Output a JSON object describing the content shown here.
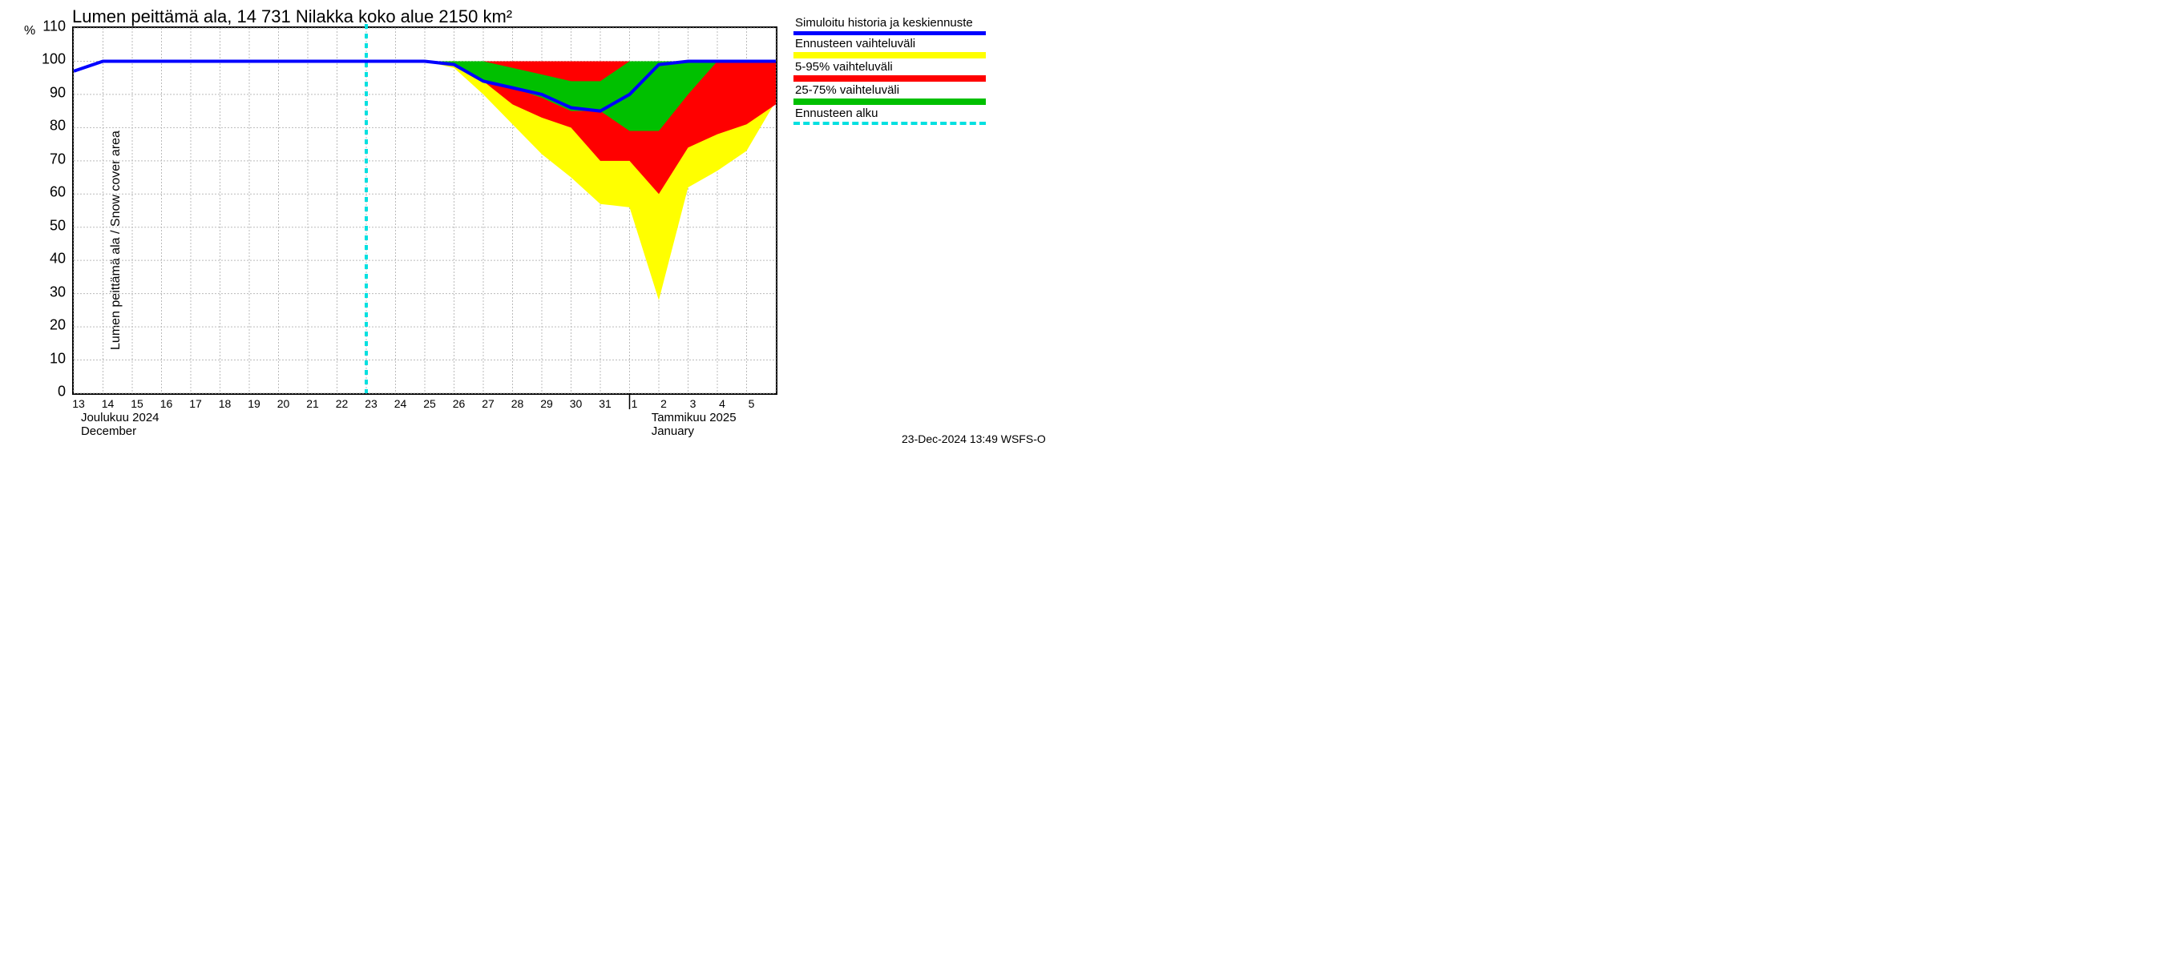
{
  "title": "Lumen peittämä ala, 14 731 Nilakka koko alue 2150 km²",
  "ylabel": "Lumen peittämä ala / Snow cover area",
  "yunit": "%",
  "footer": "23-Dec-2024 13:49 WSFS-O",
  "chart": {
    "type": "area+line",
    "background_color": "#ffffff",
    "grid_color": "#bbbbbb",
    "ylim": [
      0,
      110
    ],
    "yticks": [
      0,
      10,
      20,
      30,
      40,
      50,
      60,
      70,
      80,
      90,
      100,
      110
    ],
    "x_days": [
      "13",
      "14",
      "15",
      "16",
      "17",
      "18",
      "19",
      "20",
      "21",
      "22",
      "23",
      "24",
      "25",
      "26",
      "27",
      "28",
      "29",
      "30",
      "31",
      "1",
      "2",
      "3",
      "4",
      "5"
    ],
    "forecast_start_index": 10,
    "month_sep_index": 19,
    "month_labels": [
      {
        "at_index": 0.3,
        "line1": "Joulukuu  2024",
        "line2": "December"
      },
      {
        "at_index": 19.8,
        "line1": "Tammikuu  2025",
        "line2": "January"
      }
    ],
    "colors": {
      "sim_line": "#0000ff",
      "full_band": "#ffff00",
      "p5_95_band": "#ff0000",
      "p25_75_band": "#00c000",
      "forecast_start": "#00e0e0"
    },
    "line_widths": {
      "sim_line": 4,
      "forecast_start": 4
    },
    "sim_line": [
      97,
      100,
      100,
      100,
      100,
      100,
      100,
      100,
      100,
      100,
      100,
      100,
      100,
      99,
      94,
      92,
      90,
      86,
      85,
      90,
      99,
      100,
      100,
      100,
      100
    ],
    "full_lo": [
      97,
      100,
      100,
      100,
      100,
      100,
      100,
      100,
      100,
      100,
      100,
      100,
      100,
      98,
      90,
      81,
      72,
      65,
      57,
      56,
      28,
      62,
      67,
      73,
      88
    ],
    "full_hi": [
      97,
      100,
      100,
      100,
      100,
      100,
      100,
      100,
      100,
      100,
      100,
      100,
      100,
      100,
      100,
      100,
      100,
      100,
      100,
      100,
      100,
      100,
      100,
      100,
      100
    ],
    "p5_lo": [
      97,
      100,
      100,
      100,
      100,
      100,
      100,
      100,
      100,
      100,
      100,
      100,
      100,
      99,
      94,
      87,
      83,
      80,
      70,
      70,
      60,
      74,
      78,
      81,
      87
    ],
    "p5_hi": [
      97,
      100,
      100,
      100,
      100,
      100,
      100,
      100,
      100,
      100,
      100,
      100,
      100,
      100,
      100,
      100,
      100,
      100,
      100,
      100,
      100,
      100,
      100,
      100,
      100
    ],
    "p25_lo": [
      97,
      100,
      100,
      100,
      100,
      100,
      100,
      100,
      100,
      100,
      100,
      100,
      100,
      99,
      94,
      92,
      89,
      85,
      85,
      79,
      79,
      90,
      100,
      100,
      100
    ],
    "p25_hi": [
      97,
      100,
      100,
      100,
      100,
      100,
      100,
      100,
      100,
      100,
      100,
      100,
      100,
      100,
      100,
      98,
      96,
      94,
      94,
      100,
      100,
      100,
      100,
      100,
      100
    ]
  },
  "legend": [
    {
      "label": "Simuloitu historia ja keskiennuste",
      "color": "#0000ff",
      "style": "line"
    },
    {
      "label": "Ennusteen vaihteluväli",
      "color": "#ffff00",
      "style": "solid"
    },
    {
      "label": "5-95% vaihteluväli",
      "color": "#ff0000",
      "style": "solid"
    },
    {
      "label": "25-75% vaihteluväli",
      "color": "#00c000",
      "style": "solid"
    },
    {
      "label": "Ennusteen alku",
      "color": "#00e0e0",
      "style": "dash"
    }
  ]
}
